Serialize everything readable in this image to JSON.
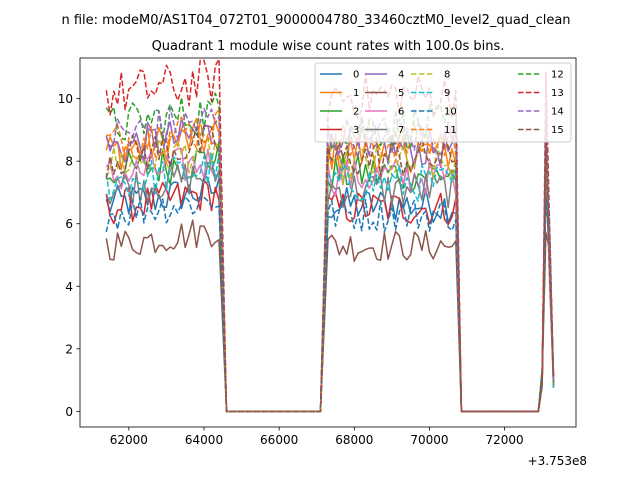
{
  "chart_data": {
    "type": "line",
    "suptitle": "n file: modeM0/AS1T04_072T01_9000004780_33460cztM0_level2_quad_clean",
    "title": "Quadrant 1 module wise count rates with 100.0s bins.",
    "xlabel": "",
    "ylabel": "",
    "x_offset_label": "+3.753e8",
    "xlim": [
      60700,
      73900
    ],
    "ylim": [
      -0.5,
      11.3
    ],
    "x_ticks": [
      62000,
      64000,
      66000,
      68000,
      70000,
      72000
    ],
    "x_tick_labels": [
      "62000",
      "64000",
      "66000",
      "68000",
      "70000",
      "72000"
    ],
    "y_ticks": [
      0,
      2,
      4,
      6,
      8,
      10
    ],
    "y_tick_labels": [
      "0",
      "2",
      "4",
      "6",
      "8",
      "10"
    ],
    "legend_location": "upper right",
    "legend_columns": 4,
    "x_segments": {
      "on1": [
        61400,
        64400
      ],
      "drop1": [
        64600,
        67100
      ],
      "on2": [
        67300,
        70700
      ],
      "drop2": [
        70850,
        72900
      ],
      "final": [
        73000,
        73100,
        73200,
        73300
      ]
    },
    "series": [
      {
        "name": "0",
        "color": "#1f77b4",
        "style": "solid",
        "level": 6.6
      },
      {
        "name": "1",
        "color": "#ff7f0e",
        "style": "solid",
        "level": 8.3
      },
      {
        "name": "2",
        "color": "#2ca02c",
        "style": "solid",
        "level": 7.6
      },
      {
        "name": "3",
        "color": "#d62728",
        "style": "solid",
        "level": 6.5
      },
      {
        "name": "4",
        "color": "#9467bd",
        "style": "solid",
        "level": 8.4
      },
      {
        "name": "5",
        "color": "#8c564b",
        "style": "solid",
        "level": 5.3
      },
      {
        "name": "6",
        "color": "#e377c2",
        "style": "solid",
        "level": 7.5
      },
      {
        "name": "7",
        "color": "#7f7f7f",
        "style": "solid",
        "level": 7.1
      },
      {
        "name": "8",
        "color": "#bcbd22",
        "style": "dashed",
        "level": 7.9
      },
      {
        "name": "9",
        "color": "#17becf",
        "style": "dashed",
        "level": 7.3
      },
      {
        "name": "10",
        "color": "#1f77b4",
        "style": "dashed",
        "level": 6.3
      },
      {
        "name": "11",
        "color": "#ff7f0e",
        "style": "dashed",
        "level": 8.6
      },
      {
        "name": "12",
        "color": "#2ca02c",
        "style": "dashed",
        "level": 9.1
      },
      {
        "name": "13",
        "color": "#d62728",
        "style": "dashed",
        "level": 10.1
      },
      {
        "name": "14",
        "color": "#9467bd",
        "style": "dashed",
        "level": 8.8
      },
      {
        "name": "15",
        "color": "#8c564b",
        "style": "dashed",
        "level": 8.1
      }
    ]
  }
}
